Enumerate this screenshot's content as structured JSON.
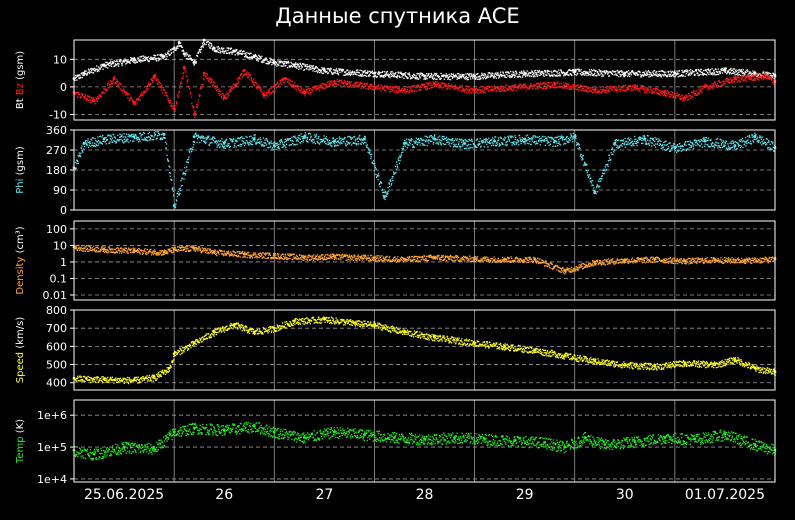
{
  "title": "Данные спутника ACE",
  "colors": {
    "background": "#000000",
    "frame": "#ffffff",
    "grid": "#9a9a9a",
    "bt": "#ffffff",
    "bz": "#ff1a1a",
    "phi": "#5fe6f0",
    "density": "#ffa733",
    "speed": "#ffff22",
    "temp": "#22ee22"
  },
  "chart_data": [
    {
      "type": "scatter",
      "id": "bfield",
      "ylabel_parts": [
        {
          "text": "Bt ",
          "color": "#ffffff"
        },
        {
          "text": "Bz",
          "color": "#ff1a1a"
        },
        {
          "text": " (gsm)",
          "color": "#ffffff"
        }
      ],
      "scale": "linear",
      "ylim": [
        -12,
        17
      ],
      "yticks": [
        -10,
        0,
        10
      ],
      "ytick_labels": [
        "-10",
        "0",
        "10"
      ],
      "xlim": [
        0,
        7
      ],
      "series": [
        {
          "name": "Bt",
          "color": "#ffffff",
          "points": [
            [
              0,
              3
            ],
            [
              0.1,
              5
            ],
            [
              0.3,
              8
            ],
            [
              0.6,
              10
            ],
            [
              0.9,
              11
            ],
            [
              1.0,
              14
            ],
            [
              1.05,
              16
            ],
            [
              1.1,
              12
            ],
            [
              1.2,
              9
            ],
            [
              1.3,
              17
            ],
            [
              1.4,
              14
            ],
            [
              1.6,
              13
            ],
            [
              1.8,
              11
            ],
            [
              2.0,
              9
            ],
            [
              2.2,
              8
            ],
            [
              2.5,
              6
            ],
            [
              3.0,
              5
            ],
            [
              3.5,
              4
            ],
            [
              4.0,
              4
            ],
            [
              4.5,
              5
            ],
            [
              5.0,
              5.5
            ],
            [
              5.5,
              5
            ],
            [
              6.0,
              5
            ],
            [
              6.5,
              6
            ],
            [
              6.8,
              5
            ],
            [
              7.0,
              4
            ]
          ]
        },
        {
          "name": "Bz",
          "color": "#ff1a1a",
          "points": [
            [
              0,
              -2
            ],
            [
              0.2,
              -5
            ],
            [
              0.4,
              3
            ],
            [
              0.6,
              -6
            ],
            [
              0.8,
              4
            ],
            [
              1.0,
              -8
            ],
            [
              1.1,
              7
            ],
            [
              1.2,
              -10
            ],
            [
              1.3,
              5
            ],
            [
              1.5,
              -4
            ],
            [
              1.7,
              6
            ],
            [
              1.9,
              -3
            ],
            [
              2.1,
              3
            ],
            [
              2.3,
              -2
            ],
            [
              2.6,
              2
            ],
            [
              3.0,
              0
            ],
            [
              3.3,
              -1
            ],
            [
              3.6,
              1
            ],
            [
              4.0,
              -1
            ],
            [
              4.4,
              0
            ],
            [
              4.8,
              1
            ],
            [
              5.2,
              -1
            ],
            [
              5.6,
              0
            ],
            [
              5.9,
              -2
            ],
            [
              6.1,
              -4
            ],
            [
              6.3,
              0
            ],
            [
              6.6,
              3
            ],
            [
              6.9,
              4
            ],
            [
              7.0,
              2
            ]
          ]
        }
      ]
    },
    {
      "type": "scatter",
      "id": "phi",
      "ylabel_parts": [
        {
          "text": "Phi",
          "color": "#5fe6f0"
        },
        {
          "text": " (gsm)",
          "color": "#ffffff"
        }
      ],
      "scale": "linear",
      "ylim": [
        0,
        360
      ],
      "yticks": [
        0,
        90,
        180,
        270,
        360
      ],
      "ytick_labels": [
        "0",
        "90",
        "180",
        "270",
        "360"
      ],
      "xlim": [
        0,
        7
      ],
      "series": [
        {
          "name": "Phi",
          "color": "#5fe6f0",
          "points": [
            [
              0,
              190
            ],
            [
              0.1,
              300
            ],
            [
              0.3,
              320
            ],
            [
              0.6,
              330
            ],
            [
              0.9,
              340
            ],
            [
              1.0,
              20
            ],
            [
              1.2,
              330
            ],
            [
              1.5,
              300
            ],
            [
              1.8,
              320
            ],
            [
              2.0,
              290
            ],
            [
              2.3,
              330
            ],
            [
              2.6,
              310
            ],
            [
              2.9,
              320
            ],
            [
              3.1,
              60
            ],
            [
              3.3,
              300
            ],
            [
              3.6,
              320
            ],
            [
              3.9,
              300
            ],
            [
              4.2,
              310
            ],
            [
              4.5,
              320
            ],
            [
              4.8,
              310
            ],
            [
              5.0,
              330
            ],
            [
              5.2,
              80
            ],
            [
              5.4,
              300
            ],
            [
              5.7,
              320
            ],
            [
              6.0,
              280
            ],
            [
              6.3,
              310
            ],
            [
              6.6,
              290
            ],
            [
              6.8,
              330
            ],
            [
              7.0,
              280
            ]
          ]
        }
      ]
    },
    {
      "type": "scatter",
      "id": "density",
      "ylabel_parts": [
        {
          "text": "Density",
          "color": "#ffa733"
        },
        {
          "text": " (cm³)",
          "color": "#ffffff"
        }
      ],
      "scale": "log",
      "ylim": [
        0.005,
        300
      ],
      "yticks": [
        0.01,
        0.1,
        1,
        10,
        100
      ],
      "ytick_labels": [
        "0.01",
        "0.1",
        "1",
        "10",
        "100"
      ],
      "xlim": [
        0,
        7
      ],
      "series": [
        {
          "name": "Density",
          "color": "#ffa733",
          "points": [
            [
              0,
              8
            ],
            [
              0.3,
              6
            ],
            [
              0.6,
              5
            ],
            [
              0.9,
              4
            ],
            [
              1.0,
              6
            ],
            [
              1.2,
              7
            ],
            [
              1.4,
              4
            ],
            [
              1.7,
              3
            ],
            [
              2.0,
              2.5
            ],
            [
              2.3,
              2
            ],
            [
              2.6,
              2.2
            ],
            [
              3.0,
              1.8
            ],
            [
              3.3,
              1.5
            ],
            [
              3.6,
              2
            ],
            [
              4.0,
              1.6
            ],
            [
              4.3,
              1.5
            ],
            [
              4.6,
              1.5
            ],
            [
              4.9,
              0.3
            ],
            [
              5.2,
              1
            ],
            [
              5.5,
              1.3
            ],
            [
              5.8,
              1.5
            ],
            [
              6.1,
              1.2
            ],
            [
              6.4,
              1.4
            ],
            [
              6.7,
              1.3
            ],
            [
              7.0,
              1.5
            ]
          ]
        }
      ]
    },
    {
      "type": "scatter",
      "id": "speed",
      "ylabel_parts": [
        {
          "text": "Speed",
          "color": "#ffff22"
        },
        {
          "text": " (km/s)",
          "color": "#ffffff"
        }
      ],
      "scale": "linear",
      "ylim": [
        360,
        800
      ],
      "yticks": [
        400,
        500,
        600,
        700,
        800
      ],
      "ytick_labels": [
        "400",
        "500",
        "600",
        "700",
        "800"
      ],
      "xlim": [
        0,
        7
      ],
      "series": [
        {
          "name": "Speed",
          "color": "#ffff22",
          "points": [
            [
              0,
              425
            ],
            [
              0.3,
              420
            ],
            [
              0.6,
              415
            ],
            [
              0.8,
              430
            ],
            [
              0.95,
              480
            ],
            [
              1.0,
              560
            ],
            [
              1.2,
              620
            ],
            [
              1.4,
              680
            ],
            [
              1.6,
              720
            ],
            [
              1.8,
              680
            ],
            [
              2.0,
              700
            ],
            [
              2.2,
              740
            ],
            [
              2.5,
              750
            ],
            [
              2.8,
              730
            ],
            [
              3.0,
              720
            ],
            [
              3.3,
              680
            ],
            [
              3.6,
              650
            ],
            [
              4.0,
              620
            ],
            [
              4.3,
              600
            ],
            [
              4.6,
              580
            ],
            [
              4.9,
              550
            ],
            [
              5.2,
              520
            ],
            [
              5.5,
              500
            ],
            [
              5.8,
              490
            ],
            [
              6.1,
              510
            ],
            [
              6.4,
              500
            ],
            [
              6.6,
              530
            ],
            [
              6.8,
              480
            ],
            [
              7.0,
              460
            ]
          ]
        }
      ]
    },
    {
      "type": "scatter",
      "id": "temp",
      "ylabel_parts": [
        {
          "text": "Temp",
          "color": "#22ee22"
        },
        {
          "text": " (K)",
          "color": "#ffffff"
        }
      ],
      "scale": "log",
      "ylim": [
        8000,
        3000000
      ],
      "yticks": [
        10000,
        100000,
        1000000
      ],
      "ytick_labels": [
        "1e+4",
        "1e+5",
        "1e+6"
      ],
      "xlim": [
        0,
        7
      ],
      "series": [
        {
          "name": "Temp",
          "color": "#22ee22",
          "points": [
            [
              0,
              80000
            ],
            [
              0.2,
              60000
            ],
            [
              0.5,
              100000
            ],
            [
              0.8,
              90000
            ],
            [
              1.0,
              300000
            ],
            [
              1.2,
              400000
            ],
            [
              1.5,
              350000
            ],
            [
              1.8,
              450000
            ],
            [
              2.0,
              300000
            ],
            [
              2.3,
              200000
            ],
            [
              2.6,
              300000
            ],
            [
              2.9,
              250000
            ],
            [
              3.2,
              200000
            ],
            [
              3.5,
              180000
            ],
            [
              3.8,
              200000
            ],
            [
              4.1,
              180000
            ],
            [
              4.4,
              160000
            ],
            [
              4.7,
              140000
            ],
            [
              4.9,
              100000
            ],
            [
              5.1,
              200000
            ],
            [
              5.3,
              120000
            ],
            [
              5.6,
              150000
            ],
            [
              5.9,
              200000
            ],
            [
              6.2,
              180000
            ],
            [
              6.5,
              250000
            ],
            [
              6.8,
              120000
            ],
            [
              7.0,
              80000
            ]
          ]
        }
      ]
    }
  ],
  "x_axis": {
    "xlim": [
      0,
      7
    ],
    "day_ticks": [
      1,
      2,
      3,
      4,
      5,
      6
    ],
    "labels": [
      {
        "x": 0.5,
        "text": "25.06.2025"
      },
      {
        "x": 1.5,
        "text": "26"
      },
      {
        "x": 2.5,
        "text": "27"
      },
      {
        "x": 3.5,
        "text": "28"
      },
      {
        "x": 4.5,
        "text": "29"
      },
      {
        "x": 5.5,
        "text": "30"
      },
      {
        "x": 6.5,
        "text": "01.07.2025"
      }
    ]
  }
}
